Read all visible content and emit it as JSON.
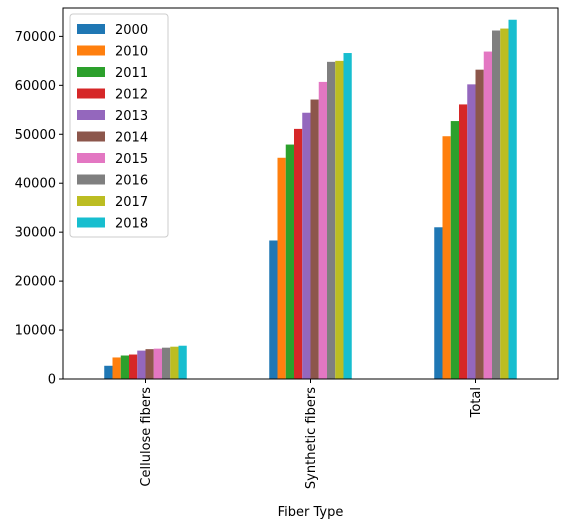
{
  "chart_data": {
    "type": "bar",
    "xlabel": "Fiber Type",
    "ylabel": "",
    "ylim": [
      0,
      75800
    ],
    "yticks": [
      0,
      10000,
      20000,
      30000,
      40000,
      50000,
      60000,
      70000
    ],
    "grid": false,
    "legend_position": "top-left",
    "categories": [
      "Cellulose fibers",
      "Synthetic fibers",
      "Total"
    ],
    "series": [
      {
        "name": "2000",
        "color": "#1f77b4",
        "values": [
          2700,
          28300,
          31000
        ]
      },
      {
        "name": "2010",
        "color": "#ff7f0e",
        "values": [
          4400,
          45200,
          49600
        ]
      },
      {
        "name": "2011",
        "color": "#2ca02c",
        "values": [
          4800,
          47900,
          52700
        ]
      },
      {
        "name": "2012",
        "color": "#d62728",
        "values": [
          5000,
          51100,
          56100
        ]
      },
      {
        "name": "2013",
        "color": "#9467bd",
        "values": [
          5800,
          54400,
          60200
        ]
      },
      {
        "name": "2014",
        "color": "#8c564b",
        "values": [
          6100,
          57100,
          63200
        ]
      },
      {
        "name": "2015",
        "color": "#e377c2",
        "values": [
          6200,
          60700,
          66900
        ]
      },
      {
        "name": "2016",
        "color": "#7f7f7f",
        "values": [
          6400,
          64800,
          71200
        ]
      },
      {
        "name": "2017",
        "color": "#bcbd22",
        "values": [
          6600,
          65000,
          71600
        ]
      },
      {
        "name": "2018",
        "color": "#17becf",
        "values": [
          6800,
          66600,
          73400
        ]
      }
    ]
  }
}
